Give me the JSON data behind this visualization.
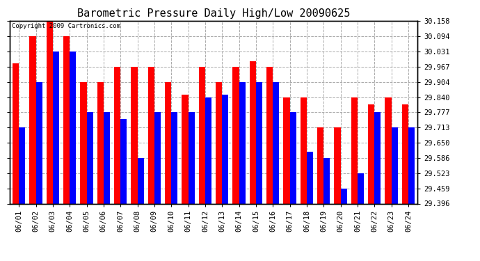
{
  "title": "Barometric Pressure Daily High/Low 20090625",
  "copyright": "Copyright 2009 Cartronics.com",
  "dates": [
    "06/01",
    "06/02",
    "06/03",
    "06/04",
    "06/05",
    "06/06",
    "06/07",
    "06/08",
    "06/09",
    "06/10",
    "06/11",
    "06/12",
    "06/13",
    "06/14",
    "06/15",
    "06/16",
    "06/17",
    "06/18",
    "06/19",
    "06/20",
    "06/21",
    "06/22",
    "06/23",
    "06/24"
  ],
  "highs": [
    29.98,
    30.094,
    30.158,
    30.094,
    29.904,
    29.904,
    29.967,
    29.967,
    29.967,
    29.904,
    29.85,
    29.967,
    29.904,
    29.967,
    29.99,
    29.967,
    29.84,
    29.84,
    29.713,
    29.713,
    29.84,
    29.81,
    29.84,
    29.81
  ],
  "lows": [
    29.713,
    29.904,
    30.031,
    30.031,
    29.777,
    29.777,
    29.75,
    29.586,
    29.777,
    29.777,
    29.777,
    29.84,
    29.85,
    29.904,
    29.904,
    29.904,
    29.777,
    29.613,
    29.586,
    29.459,
    29.523,
    29.777,
    29.713,
    29.713
  ],
  "yticks": [
    29.396,
    29.459,
    29.523,
    29.586,
    29.65,
    29.713,
    29.777,
    29.84,
    29.904,
    29.967,
    30.031,
    30.094,
    30.158
  ],
  "ymin": 29.396,
  "ymax": 30.158,
  "high_color": "#FF0000",
  "low_color": "#0000FF",
  "bg_color": "#FFFFFF",
  "plot_bg_color": "#FFFFFF",
  "grid_color": "#AAAAAA",
  "bar_width": 0.38,
  "title_fontsize": 11,
  "tick_fontsize": 7.5
}
